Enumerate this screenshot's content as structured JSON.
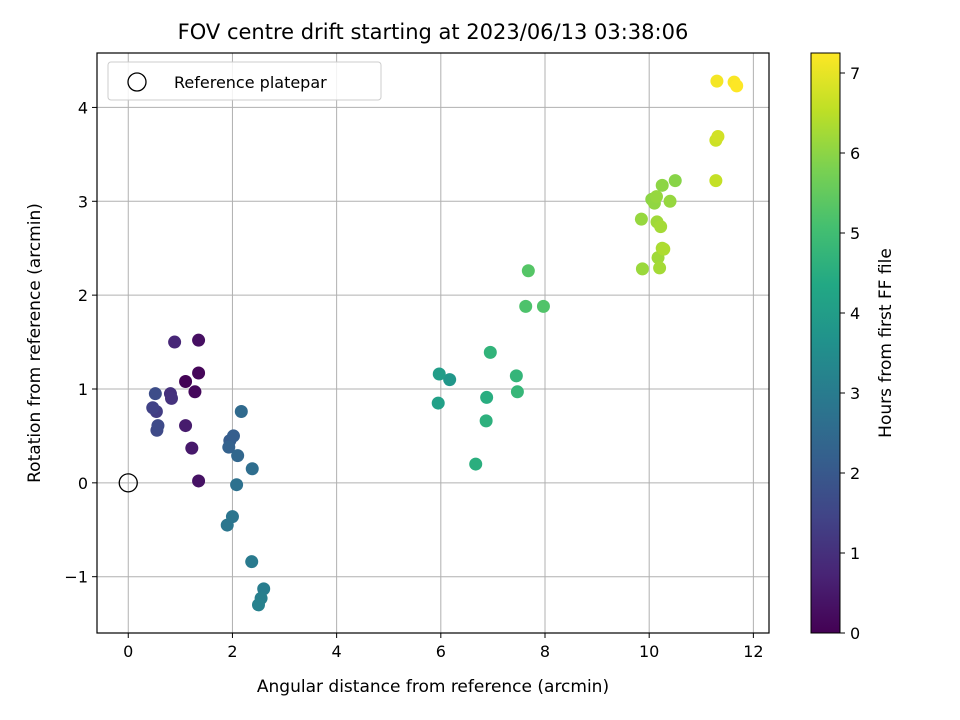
{
  "chart_data": {
    "type": "scatter",
    "title": "FOV centre drift starting at 2023/06/13 03:38:06",
    "xlabel": "Angular distance from reference (arcmin)",
    "ylabel": "Rotation from reference (arcmin)",
    "xlim": [
      -0.6,
      12.3
    ],
    "ylim": [
      -1.6,
      4.58
    ],
    "xticks": [
      0,
      2,
      4,
      6,
      8,
      10,
      12
    ],
    "yticks": [
      -1,
      0,
      1,
      2,
      3,
      4
    ],
    "grid": true,
    "legend": {
      "placement": "top-left",
      "entries": [
        {
          "label": "Reference platepar",
          "marker": "open-circle"
        }
      ]
    },
    "reference_point": {
      "x": 0,
      "y": 0
    },
    "colorbar": {
      "label": "Hours from first FF file",
      "colormap": "viridis",
      "range": [
        0,
        7.25
      ],
      "ticks": [
        0,
        1,
        2,
        3,
        4,
        5,
        6,
        7
      ]
    },
    "points": [
      {
        "x": 1.1,
        "y": 1.08,
        "c": 0.05
      },
      {
        "x": 1.35,
        "y": 1.17,
        "c": 0.1
      },
      {
        "x": 1.28,
        "y": 0.97,
        "c": 0.15
      },
      {
        "x": 1.35,
        "y": 1.52,
        "c": 0.3
      },
      {
        "x": 1.35,
        "y": 0.02,
        "c": 0.35
      },
      {
        "x": 1.22,
        "y": 0.37,
        "c": 0.5
      },
      {
        "x": 1.1,
        "y": 0.61,
        "c": 0.55
      },
      {
        "x": 0.89,
        "y": 1.5,
        "c": 0.8
      },
      {
        "x": 0.81,
        "y": 0.95,
        "c": 1.0
      },
      {
        "x": 0.83,
        "y": 0.9,
        "c": 1.05
      },
      {
        "x": 0.54,
        "y": 0.76,
        "c": 1.3
      },
      {
        "x": 0.47,
        "y": 0.8,
        "c": 1.4
      },
      {
        "x": 0.55,
        "y": 0.56,
        "c": 1.6
      },
      {
        "x": 0.57,
        "y": 0.61,
        "c": 1.65
      },
      {
        "x": 0.52,
        "y": 0.95,
        "c": 1.7
      },
      {
        "x": 1.95,
        "y": 0.45,
        "c": 2.1
      },
      {
        "x": 2.02,
        "y": 0.5,
        "c": 2.15
      },
      {
        "x": 1.93,
        "y": 0.38,
        "c": 2.25
      },
      {
        "x": 2.1,
        "y": 0.29,
        "c": 2.4
      },
      {
        "x": 2.17,
        "y": 0.76,
        "c": 2.5
      },
      {
        "x": 2.38,
        "y": 0.15,
        "c": 2.6
      },
      {
        "x": 2.08,
        "y": -0.02,
        "c": 2.7
      },
      {
        "x": 2.0,
        "y": -0.36,
        "c": 2.8
      },
      {
        "x": 1.9,
        "y": -0.45,
        "c": 2.85
      },
      {
        "x": 2.37,
        "y": -0.84,
        "c": 2.95
      },
      {
        "x": 2.6,
        "y": -1.13,
        "c": 3.05
      },
      {
        "x": 2.55,
        "y": -1.23,
        "c": 3.1
      },
      {
        "x": 2.5,
        "y": -1.3,
        "c": 3.15
      },
      {
        "x": 6.17,
        "y": 1.1,
        "c": 3.8
      },
      {
        "x": 5.97,
        "y": 1.16,
        "c": 4.0
      },
      {
        "x": 5.95,
        "y": 0.85,
        "c": 4.1
      },
      {
        "x": 6.88,
        "y": 0.91,
        "c": 4.5
      },
      {
        "x": 6.87,
        "y": 0.66,
        "c": 4.6
      },
      {
        "x": 6.67,
        "y": 0.2,
        "c": 4.55
      },
      {
        "x": 6.95,
        "y": 1.39,
        "c": 4.7
      },
      {
        "x": 7.45,
        "y": 1.14,
        "c": 4.75
      },
      {
        "x": 7.47,
        "y": 0.97,
        "c": 4.8
      },
      {
        "x": 7.63,
        "y": 1.88,
        "c": 5.2
      },
      {
        "x": 7.97,
        "y": 1.88,
        "c": 5.25
      },
      {
        "x": 7.68,
        "y": 2.26,
        "c": 5.3
      },
      {
        "x": 9.87,
        "y": 2.28,
        "c": 6.15
      },
      {
        "x": 9.85,
        "y": 2.81,
        "c": 6.1
      },
      {
        "x": 10.17,
        "y": 2.4,
        "c": 6.2
      },
      {
        "x": 10.2,
        "y": 2.29,
        "c": 6.25
      },
      {
        "x": 10.25,
        "y": 2.5,
        "c": 6.3
      },
      {
        "x": 10.28,
        "y": 2.49,
        "c": 6.35
      },
      {
        "x": 10.15,
        "y": 2.78,
        "c": 6.2
      },
      {
        "x": 10.22,
        "y": 2.73,
        "c": 6.25
      },
      {
        "x": 10.05,
        "y": 3.02,
        "c": 6.0
      },
      {
        "x": 10.1,
        "y": 2.98,
        "c": 6.05
      },
      {
        "x": 10.14,
        "y": 3.05,
        "c": 6.1
      },
      {
        "x": 10.25,
        "y": 3.17,
        "c": 6.0
      },
      {
        "x": 10.4,
        "y": 3.0,
        "c": 6.1
      },
      {
        "x": 10.5,
        "y": 3.22,
        "c": 5.95
      },
      {
        "x": 11.28,
        "y": 3.22,
        "c": 6.6
      },
      {
        "x": 11.28,
        "y": 3.65,
        "c": 6.7
      },
      {
        "x": 11.32,
        "y": 3.69,
        "c": 6.75
      },
      {
        "x": 11.3,
        "y": 4.28,
        "c": 7.15
      },
      {
        "x": 11.63,
        "y": 4.27,
        "c": 7.2
      },
      {
        "x": 11.68,
        "y": 4.23,
        "c": 7.25
      }
    ]
  }
}
